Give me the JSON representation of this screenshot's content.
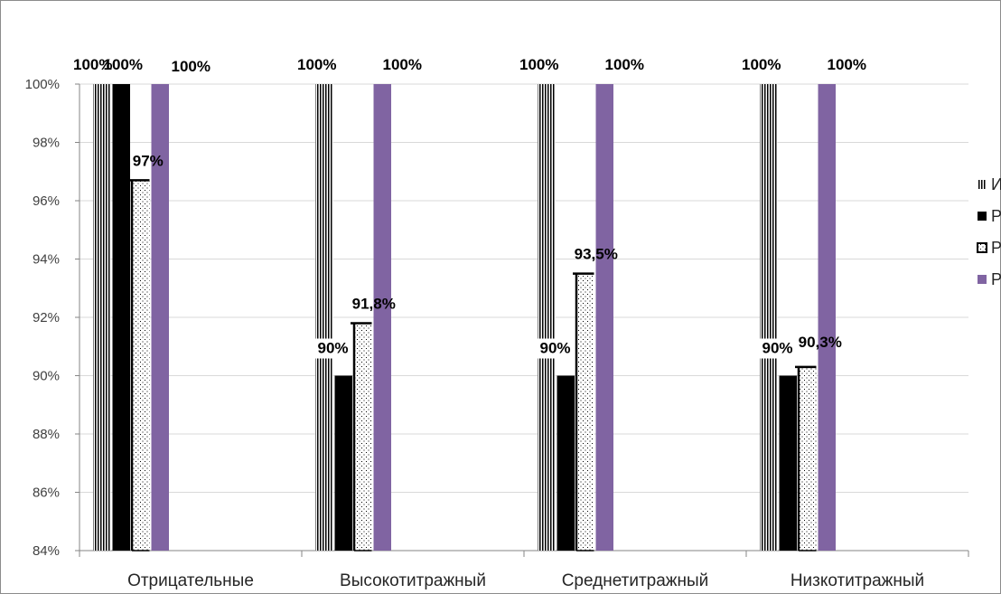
{
  "chart_data": {
    "type": "bar",
    "categories": [
      "Отрицательные",
      "Высокотитражный",
      "Среднетитражный",
      "Низкотитражный"
    ],
    "series": [
      {
        "name": "ИФА",
        "values": [
          100,
          100,
          100,
          100
        ],
        "labels": [
          "100%",
          "100%",
          "100%",
          "100%"
        ],
        "pattern": "vertical-lines",
        "color": "#000000"
      },
      {
        "name": "РМП",
        "values": [
          100,
          90,
          90,
          90
        ],
        "labels": [
          "100%",
          "90%",
          "90%",
          "90%"
        ],
        "pattern": "solid",
        "color": "#000000"
      },
      {
        "name": "РПР",
        "values": [
          96.7,
          91.8,
          93.5,
          90.3
        ],
        "labels": [
          "97%",
          "91,8%",
          "93,5%",
          "90,3%"
        ],
        "pattern": "dots",
        "color": "#000000"
      },
      {
        "name": "РПГА",
        "values": [
          100,
          100,
          100,
          100
        ],
        "labels": [
          "100%",
          "100%",
          "100%",
          "100%"
        ],
        "pattern": "solid",
        "color": "#8064a2"
      }
    ],
    "ylim": [
      84,
      100
    ],
    "yticks": [
      84,
      86,
      88,
      90,
      92,
      94,
      96,
      98,
      100
    ],
    "ytick_labels": [
      "84%",
      "86%",
      "88%",
      "90%",
      "92%",
      "94%",
      "96%",
      "98%",
      "100%"
    ],
    "grid": true,
    "legend_position": "right",
    "title": "",
    "xlabel": "",
    "ylabel": ""
  }
}
